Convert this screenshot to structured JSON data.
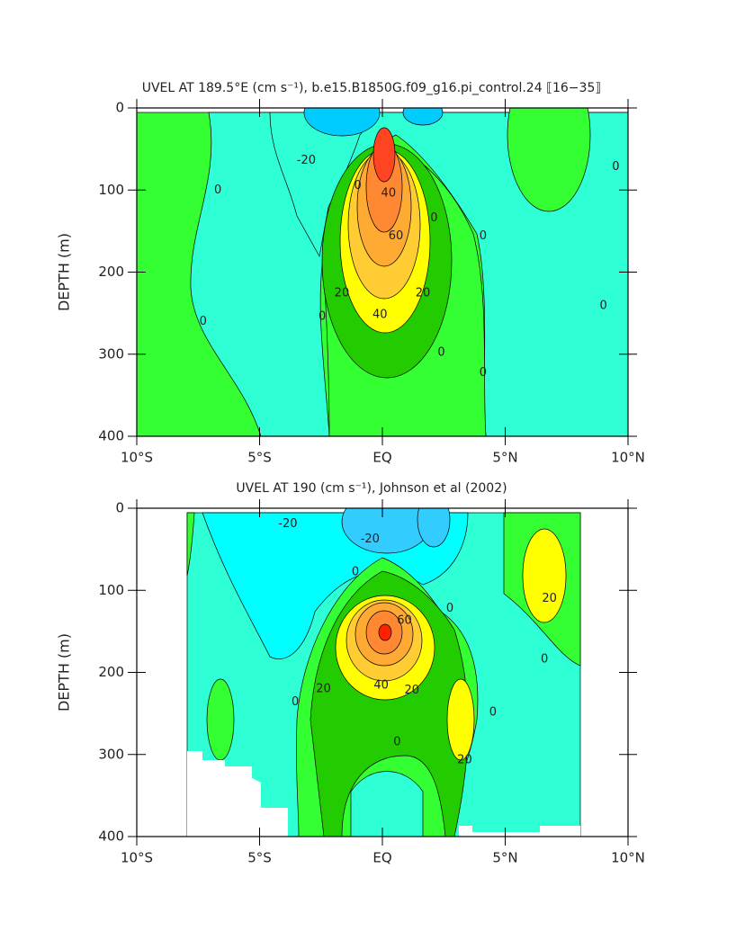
{
  "chart_data": [
    {
      "type": "contour",
      "title": "UVEL AT 189.5°E (cm s⁻¹), b.e15.B1850G.f09_g16.pi_control.24 ⟦16−35⟧",
      "ylabel": "DEPTH (m)",
      "xlim": [
        -10,
        10
      ],
      "ylim": [
        400,
        0
      ],
      "xticks": [
        {
          "value": -10,
          "label": "10°S"
        },
        {
          "value": -5,
          "label": "5°S"
        },
        {
          "value": 0,
          "label": "EQ"
        },
        {
          "value": 5,
          "label": "5°N"
        },
        {
          "value": 10,
          "label": "10°N"
        }
      ],
      "yticks": [
        0,
        100,
        200,
        300,
        400
      ],
      "annotations": [
        {
          "text": -20,
          "x": -3.1,
          "y": 64
        },
        {
          "text": 0,
          "x": -6.7,
          "y": 100
        },
        {
          "text": 0,
          "x": -1.0,
          "y": 95
        },
        {
          "text": 40,
          "x": 0.25,
          "y": 104
        },
        {
          "text": 0,
          "x": 2.1,
          "y": 134
        },
        {
          "text": 0,
          "x": 4.1,
          "y": 156
        },
        {
          "text": 60,
          "x": 0.55,
          "y": 156
        },
        {
          "text": 0,
          "x": 9.5,
          "y": 72
        },
        {
          "text": 0,
          "x": -7.3,
          "y": 260
        },
        {
          "text": 0,
          "x": -2.45,
          "y": 254
        },
        {
          "text": 20,
          "x": -1.65,
          "y": 226
        },
        {
          "text": 20,
          "x": 1.65,
          "y": 226
        },
        {
          "text": 40,
          "x": -0.1,
          "y": 252
        },
        {
          "text": 0,
          "x": 2.4,
          "y": 298
        },
        {
          "text": 0,
          "x": 4.1,
          "y": 323
        },
        {
          "text": 0,
          "x": 9.0,
          "y": 241
        }
      ]
    },
    {
      "type": "contour",
      "title": "UVEL AT 190 (cm s⁻¹), Johnson et al (2002)",
      "ylabel": "DEPTH (m)",
      "xlim": [
        -10,
        10
      ],
      "ylim": [
        400,
        0
      ],
      "xticks": [
        {
          "value": -10,
          "label": "10°S"
        },
        {
          "value": -5,
          "label": "5°S"
        },
        {
          "value": 0,
          "label": "EQ"
        },
        {
          "value": 5,
          "label": "5°N"
        },
        {
          "value": 10,
          "label": "10°N"
        }
      ],
      "yticks": [
        0,
        100,
        200,
        300,
        400
      ],
      "annotations": [
        {
          "text": -20,
          "x": -3.85,
          "y": 19
        },
        {
          "text": -20,
          "x": -0.5,
          "y": 38
        },
        {
          "text": 0,
          "x": -1.1,
          "y": 78
        },
        {
          "text": 0,
          "x": 2.75,
          "y": 122
        },
        {
          "text": 60,
          "x": 0.9,
          "y": 137
        },
        {
          "text": 20,
          "x": 6.8,
          "y": 110
        },
        {
          "text": 0,
          "x": 6.6,
          "y": 184
        },
        {
          "text": 20,
          "x": -2.4,
          "y": 220
        },
        {
          "text": 40,
          "x": -0.05,
          "y": 216
        },
        {
          "text": 20,
          "x": 1.2,
          "y": 222
        },
        {
          "text": 0,
          "x": -3.55,
          "y": 236
        },
        {
          "text": 0,
          "x": 4.5,
          "y": 249
        },
        {
          "text": 0,
          "x": 0.6,
          "y": 285
        },
        {
          "text": 20,
          "x": 3.35,
          "y": 307
        }
      ]
    }
  ]
}
